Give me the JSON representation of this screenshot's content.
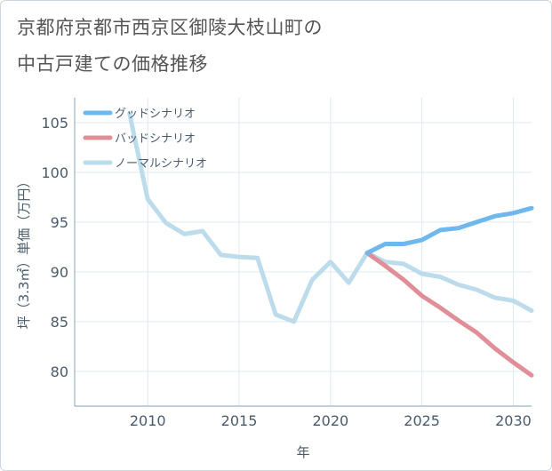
{
  "chart_data": {
    "type": "line",
    "title_lines": [
      "京都府京都市西京区御陵大枝山町の",
      "中古戸建ての価格推移"
    ],
    "xlabel": "年",
    "ylabel": "坪（3.3㎡）単価（万円）",
    "xlim": [
      2006,
      2031
    ],
    "ylim": [
      76.5,
      107.5
    ],
    "x_ticks": [
      2010,
      2015,
      2020,
      2025,
      2030
    ],
    "y_ticks": [
      80,
      85,
      90,
      95,
      100,
      105
    ],
    "grid": true,
    "legend_position": "top-left",
    "series": [
      {
        "name": "グッドシナリオ",
        "color": "#6fb8ee",
        "points": [
          [
            2022,
            91.9
          ],
          [
            2023,
            92.8
          ],
          [
            2024,
            92.8
          ],
          [
            2025,
            93.2
          ],
          [
            2026,
            94.2
          ],
          [
            2027,
            94.4
          ],
          [
            2028,
            95.0
          ],
          [
            2029,
            95.6
          ],
          [
            2030,
            95.9
          ],
          [
            2031,
            96.4
          ]
        ]
      },
      {
        "name": "バッドシナリオ",
        "color": "#e08f98",
        "points": [
          [
            2022,
            91.9
          ],
          [
            2023,
            90.6
          ],
          [
            2024,
            89.2
          ],
          [
            2025,
            87.6
          ],
          [
            2026,
            86.4
          ],
          [
            2027,
            85.1
          ],
          [
            2028,
            83.9
          ],
          [
            2029,
            82.3
          ],
          [
            2030,
            80.9
          ],
          [
            2031,
            79.6
          ]
        ]
      },
      {
        "name": "ノーマルシナリオ",
        "color": "#bcdcec",
        "points": [
          [
            2009,
            105.9
          ],
          [
            2010,
            97.3
          ],
          [
            2011,
            94.9
          ],
          [
            2012,
            93.8
          ],
          [
            2013,
            94.1
          ],
          [
            2014,
            91.7
          ],
          [
            2015,
            91.5
          ],
          [
            2016,
            91.4
          ],
          [
            2017,
            85.7
          ],
          [
            2018,
            85.0
          ],
          [
            2019,
            89.2
          ],
          [
            2020,
            91.0
          ],
          [
            2021,
            88.9
          ],
          [
            2022,
            91.9
          ],
          [
            2023,
            91.0
          ],
          [
            2024,
            90.8
          ],
          [
            2025,
            89.8
          ],
          [
            2026,
            89.5
          ],
          [
            2027,
            88.7
          ],
          [
            2028,
            88.2
          ],
          [
            2029,
            87.4
          ],
          [
            2030,
            87.1
          ],
          [
            2031,
            86.1
          ]
        ]
      }
    ]
  }
}
